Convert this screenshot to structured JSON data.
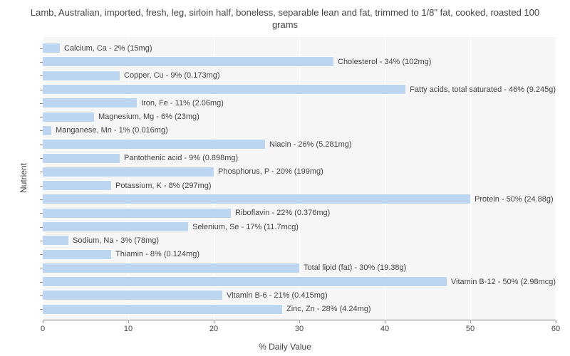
{
  "chart": {
    "type": "bar-horizontal",
    "title": "Lamb, Australian, imported, fresh, leg, sirloin half, boneless, separable lean and fat, trimmed to 1/8\" fat, cooked, roasted 100 grams",
    "title_fontsize": 13,
    "title_color": "#444444",
    "background_color": "#ffffff",
    "plot_background": "#f6f6f6",
    "grid_color": "#ffffff",
    "axis_color": "#888888",
    "text_color": "#444444",
    "bar_color": "#bcd5f0",
    "label_fontsize": 11,
    "x_axis": {
      "label": "% Daily Value",
      "min": 0,
      "max": 60,
      "tick_step": 10,
      "ticks": [
        0,
        10,
        20,
        30,
        40,
        50,
        60
      ]
    },
    "y_axis": {
      "label": "Nutrient"
    },
    "nutrients": [
      {
        "name": "Calcium, Ca",
        "percent": 2,
        "amount": "15mg"
      },
      {
        "name": "Cholesterol",
        "percent": 34,
        "amount": "102mg"
      },
      {
        "name": "Copper, Cu",
        "percent": 9,
        "amount": "0.173mg"
      },
      {
        "name": "Fatty acids, total saturated",
        "percent": 46,
        "amount": "9.245g"
      },
      {
        "name": "Iron, Fe",
        "percent": 11,
        "amount": "2.06mg"
      },
      {
        "name": "Magnesium, Mg",
        "percent": 6,
        "amount": "23mg"
      },
      {
        "name": "Manganese, Mn",
        "percent": 1,
        "amount": "0.016mg"
      },
      {
        "name": "Niacin",
        "percent": 26,
        "amount": "5.281mg"
      },
      {
        "name": "Pantothenic acid",
        "percent": 9,
        "amount": "0.898mg"
      },
      {
        "name": "Phosphorus, P",
        "percent": 20,
        "amount": "199mg"
      },
      {
        "name": "Potassium, K",
        "percent": 8,
        "amount": "297mg"
      },
      {
        "name": "Protein",
        "percent": 50,
        "amount": "24.88g"
      },
      {
        "name": "Riboflavin",
        "percent": 22,
        "amount": "0.376mg"
      },
      {
        "name": "Selenium, Se",
        "percent": 17,
        "amount": "11.7mcg"
      },
      {
        "name": "Sodium, Na",
        "percent": 3,
        "amount": "78mg"
      },
      {
        "name": "Thiamin",
        "percent": 8,
        "amount": "0.124mg"
      },
      {
        "name": "Total lipid (fat)",
        "percent": 30,
        "amount": "19.38g"
      },
      {
        "name": "Vitamin B-12",
        "percent": 50,
        "amount": "2.98mcg"
      },
      {
        "name": "Vitamin B-6",
        "percent": 21,
        "amount": "0.415mg"
      },
      {
        "name": "Zinc, Zn",
        "percent": 28,
        "amount": "4.24mg"
      }
    ]
  }
}
